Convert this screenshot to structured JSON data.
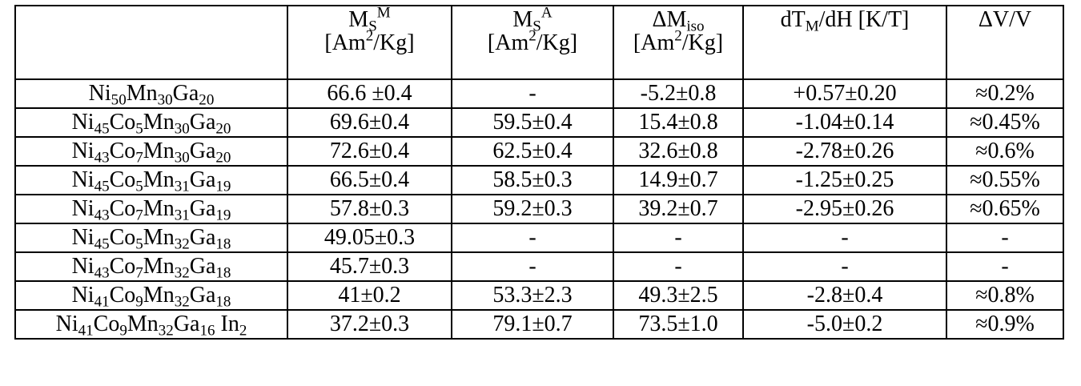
{
  "header": {
    "sample": "",
    "ms_m": {
      "base": "M",
      "sub": "S",
      "sup": "M",
      "unit_a": "[Am",
      "unit_sup": "2",
      "unit_b": "/Kg]"
    },
    "ms_a": {
      "base": "M",
      "sub": "S",
      "sup": "A",
      "unit_a": "[Am",
      "unit_sup": "2",
      "unit_b": "/Kg]"
    },
    "dm_iso": {
      "base": "ΔM",
      "sub": "iso",
      "unit_a": "[Am",
      "unit_sup": "2",
      "unit_b": "/Kg]"
    },
    "dtm_dh": {
      "a": "dT",
      "sub": "M",
      "b": "/dH [K/T]"
    },
    "dv_v": "ΔV/V"
  },
  "rows": [
    {
      "sample": [
        [
          "Ni",
          "50"
        ],
        [
          "Mn",
          "30"
        ],
        [
          "Ga",
          "20"
        ]
      ],
      "ms_m": "66.6 ±0.4",
      "ms_a": "-",
      "dm_iso": "-5.2±0.8",
      "dtm_dh": "+0.57±0.20",
      "dv_v": "≈0.2%"
    },
    {
      "sample": [
        [
          "Ni",
          "45"
        ],
        [
          "Co",
          "5"
        ],
        [
          "Mn",
          "30"
        ],
        [
          "Ga",
          "20"
        ]
      ],
      "ms_m": "69.6±0.4",
      "ms_a": "59.5±0.4",
      "dm_iso": "15.4±0.8",
      "dtm_dh": "-1.04±0.14",
      "dv_v": "≈0.45%"
    },
    {
      "sample": [
        [
          "Ni",
          "43"
        ],
        [
          "Co",
          "7"
        ],
        [
          "Mn",
          "30"
        ],
        [
          "Ga",
          "20"
        ]
      ],
      "ms_m": "72.6±0.4",
      "ms_a": "62.5±0.4",
      "dm_iso": "32.6±0.8",
      "dtm_dh": "-2.78±0.26",
      "dv_v": "≈0.6%"
    },
    {
      "sample": [
        [
          "Ni",
          "45"
        ],
        [
          "Co",
          "5"
        ],
        [
          "Mn",
          "31"
        ],
        [
          "Ga",
          "19"
        ]
      ],
      "ms_m": "66.5±0.4",
      "ms_a": "58.5±0.3",
      "dm_iso": "14.9±0.7",
      "dtm_dh": "-1.25±0.25",
      "dv_v": "≈0.55%"
    },
    {
      "sample": [
        [
          "Ni",
          "43"
        ],
        [
          "Co",
          "7"
        ],
        [
          "Mn",
          "31"
        ],
        [
          "Ga",
          "19"
        ]
      ],
      "ms_m": "57.8±0.3",
      "ms_a": "59.2±0.3",
      "dm_iso": "39.2±0.7",
      "dtm_dh": "-2.95±0.26",
      "dv_v": "≈0.65%"
    },
    {
      "sample": [
        [
          "Ni",
          "45"
        ],
        [
          "Co",
          "5"
        ],
        [
          "Mn",
          "32"
        ],
        [
          "Ga",
          "18"
        ]
      ],
      "ms_m": "49.05±0.3",
      "ms_a": "-",
      "dm_iso": "-",
      "dtm_dh": "-",
      "dv_v": "-"
    },
    {
      "sample": [
        [
          "Ni",
          "43"
        ],
        [
          "Co",
          "7"
        ],
        [
          "Mn",
          "32"
        ],
        [
          "Ga",
          "18"
        ]
      ],
      "ms_m": "45.7±0.3",
      "ms_a": "-",
      "dm_iso": "-",
      "dtm_dh": "-",
      "dv_v": "-"
    },
    {
      "sample": [
        [
          "Ni",
          "41"
        ],
        [
          "Co",
          "9"
        ],
        [
          "Mn",
          "32"
        ],
        [
          "Ga",
          "18"
        ]
      ],
      "ms_m": "41±0.2",
      "ms_a": "53.3±2.3",
      "dm_iso": "49.3±2.5",
      "dtm_dh": "-2.8±0.4",
      "dv_v": "≈0.8%"
    },
    {
      "sample": [
        [
          "Ni",
          "41"
        ],
        [
          "Co",
          "9"
        ],
        [
          "Mn",
          "32"
        ],
        [
          "Ga",
          "16"
        ],
        [
          " In",
          "2"
        ]
      ],
      "ms_m": "37.2±0.3",
      "ms_a": "79.1±0.7",
      "dm_iso": "73.5±1.0",
      "dtm_dh": "-5.0±0.2",
      "dv_v": "≈0.9%"
    }
  ]
}
